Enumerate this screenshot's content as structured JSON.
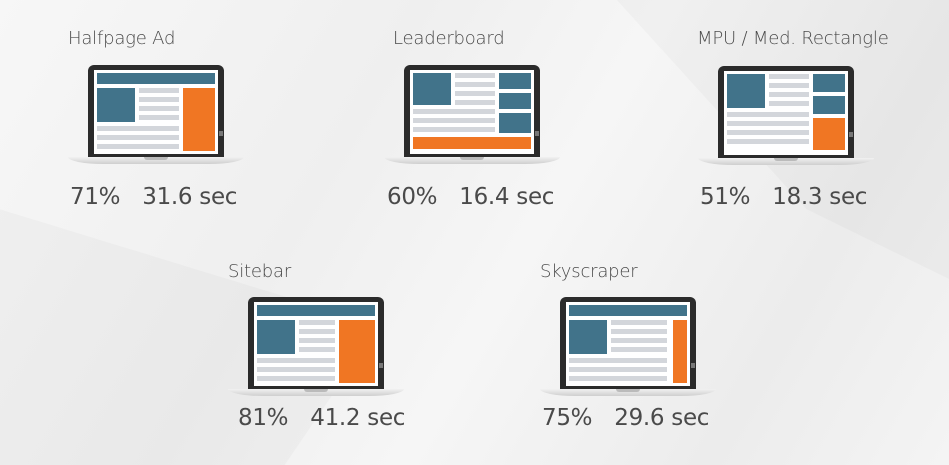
{
  "colors": {
    "ad_blue": "#41738a",
    "ad_orange": "#f07623",
    "content_gray": "#d3d6db",
    "bezel": "#2b2b2b"
  },
  "formats": [
    {
      "id": "halfpage",
      "label": "Halfpage Ad",
      "percent": "71%",
      "time": "31.6 sec"
    },
    {
      "id": "leaderboard",
      "label": "Leaderboard",
      "percent": "60%",
      "time": "16.4 sec"
    },
    {
      "id": "mpu",
      "label": "MPU / Med. Rectangle",
      "percent": "51%",
      "time": "18.3 sec"
    },
    {
      "id": "sitebar",
      "label": "Sitebar",
      "percent": "81%",
      "time": "41.2 sec"
    },
    {
      "id": "skyscraper",
      "label": "Skyscraper",
      "percent": "75%",
      "time": "29.6 sec"
    }
  ]
}
